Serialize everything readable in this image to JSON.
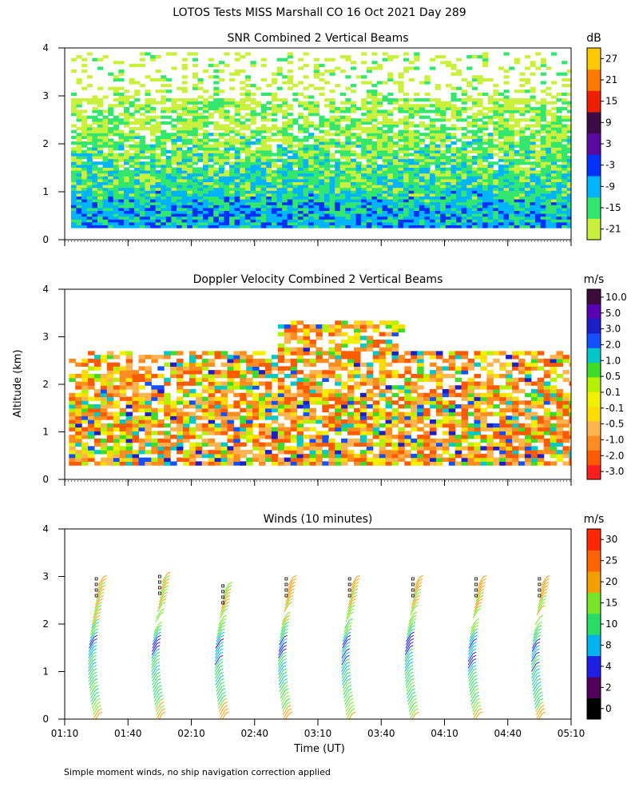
{
  "figure": {
    "title": "LOTOS Tests MISS Marshall CO  16 Oct 2021 Day 289",
    "ylabel": "Altitude (km)",
    "xlabel": "Time (UT)",
    "footnote": "Simple moment winds, no ship navigation correction applied"
  },
  "colors": {
    "white": "#ffffff",
    "black": "#000000",
    "snr_scale": [
      "#c8f03c",
      "#32e66e",
      "#00b4ff",
      "#0032ff",
      "#5a0aa0",
      "#3c0a46",
      "#f01e00",
      "#ff7800",
      "#ffc800"
    ],
    "doppler_scale": [
      "#ff1e1e",
      "#ff5a00",
      "#ff8c1e",
      "#ffb450",
      "#ffdc00",
      "#f0f000",
      "#b4f000",
      "#3cdc28",
      "#00c8c8",
      "#1450ff",
      "#1e1ec8",
      "#5a00b4",
      "#3c0a3c"
    ],
    "wind_scale": [
      "#000000",
      "#50005a",
      "#1e1ee6",
      "#00b4f0",
      "#28dc64",
      "#78e628",
      "#f0a000",
      "#ff6400",
      "#ff2800"
    ]
  },
  "chart_data": [
    {
      "type": "heatmap",
      "title": "SNR Combined 2 Vertical Beams",
      "unit": "dB",
      "x_unit": "UT",
      "x_ticks": [
        "01:10",
        "01:40",
        "02:10",
        "02:40",
        "03:10",
        "03:40",
        "04:10",
        "04:40",
        "05:10"
      ],
      "xlim": [
        "01:10",
        "05:10"
      ],
      "ylim": [
        0,
        4
      ],
      "y_ticks": [
        0,
        1,
        2,
        3,
        4
      ],
      "colorbar_labels": [
        "-21",
        "-15",
        "-9",
        "-3",
        "3",
        "9",
        "15",
        "21",
        "27"
      ],
      "colorbar_values": [
        -21,
        -15,
        -9,
        -3,
        3,
        9,
        15,
        21,
        27
      ],
      "profile": [
        {
          "alt": 0.3,
          "snr": -6
        },
        {
          "alt": 0.6,
          "snr": -7
        },
        {
          "alt": 0.9,
          "snr": -10
        },
        {
          "alt": 1.2,
          "snr": -12
        },
        {
          "alt": 1.5,
          "snr": -13
        },
        {
          "alt": 1.8,
          "snr": -15
        },
        {
          "alt": 2.1,
          "snr": -16
        },
        {
          "alt": 2.4,
          "snr": -18
        },
        {
          "alt": 2.7,
          "snr": -19
        },
        {
          "alt": 3.0,
          "snr": -20
        },
        {
          "alt": 3.3,
          "snr": -21
        },
        {
          "alt": 3.6,
          "snr": -21
        },
        {
          "alt": 3.9,
          "snr": -21
        }
      ]
    },
    {
      "type": "heatmap",
      "title": "Doppler Velocity Combined 2 Vertical Beams",
      "unit": "m/s",
      "x_ticks": [
        "01:10",
        "01:40",
        "02:10",
        "02:40",
        "03:10",
        "03:40",
        "04:10",
        "04:40",
        "05:10"
      ],
      "xlim": [
        "01:10",
        "05:10"
      ],
      "ylim": [
        0,
        4
      ],
      "y_ticks": [
        0,
        1,
        2,
        3,
        4
      ],
      "colorbar_labels": [
        "-3.0",
        "-2.0",
        "-1.0",
        "-0.5",
        "-0.1",
        "0.1",
        "0.5",
        "1.0",
        "2.0",
        "3.0",
        "5.0",
        "10.0"
      ],
      "colorbar_values": [
        -3.0,
        -2.0,
        -1.0,
        -0.5,
        -0.1,
        0.1,
        0.5,
        1.0,
        2.0,
        3.0,
        5.0,
        10.0
      ]
    },
    {
      "type": "scatter",
      "title": "Winds (10 minutes)",
      "unit": "m/s",
      "x_ticks": [
        "01:10",
        "01:40",
        "02:10",
        "02:40",
        "03:10",
        "03:40",
        "04:10",
        "04:40",
        "05:10"
      ],
      "xlim": [
        "01:10",
        "05:10"
      ],
      "ylim": [
        0,
        4
      ],
      "y_ticks": [
        0,
        1,
        2,
        3,
        4
      ],
      "colorbar_labels": [
        "0",
        "2",
        "4",
        "8",
        "10",
        "15",
        "20",
        "25",
        "30"
      ],
      "colorbar_values": [
        0,
        2,
        4,
        8,
        10,
        15,
        20,
        25,
        30
      ],
      "profile_times": [
        "01:25",
        "01:55",
        "02:25",
        "02:55",
        "03:25",
        "03:55",
        "04:25",
        "04:55"
      ],
      "profile_top_km": [
        2.95,
        3.0,
        2.8,
        2.95,
        2.95,
        2.95,
        2.95,
        2.95
      ],
      "speed_profile": [
        {
          "alt": 0.1,
          "speed": 22
        },
        {
          "alt": 0.4,
          "speed": 14
        },
        {
          "alt": 0.8,
          "speed": 12
        },
        {
          "alt": 1.2,
          "speed": 10
        },
        {
          "alt": 1.6,
          "speed": 6
        },
        {
          "alt": 2.0,
          "speed": 17
        },
        {
          "alt": 2.4,
          "speed": 20
        },
        {
          "alt": 2.8,
          "speed": 22
        }
      ]
    }
  ]
}
